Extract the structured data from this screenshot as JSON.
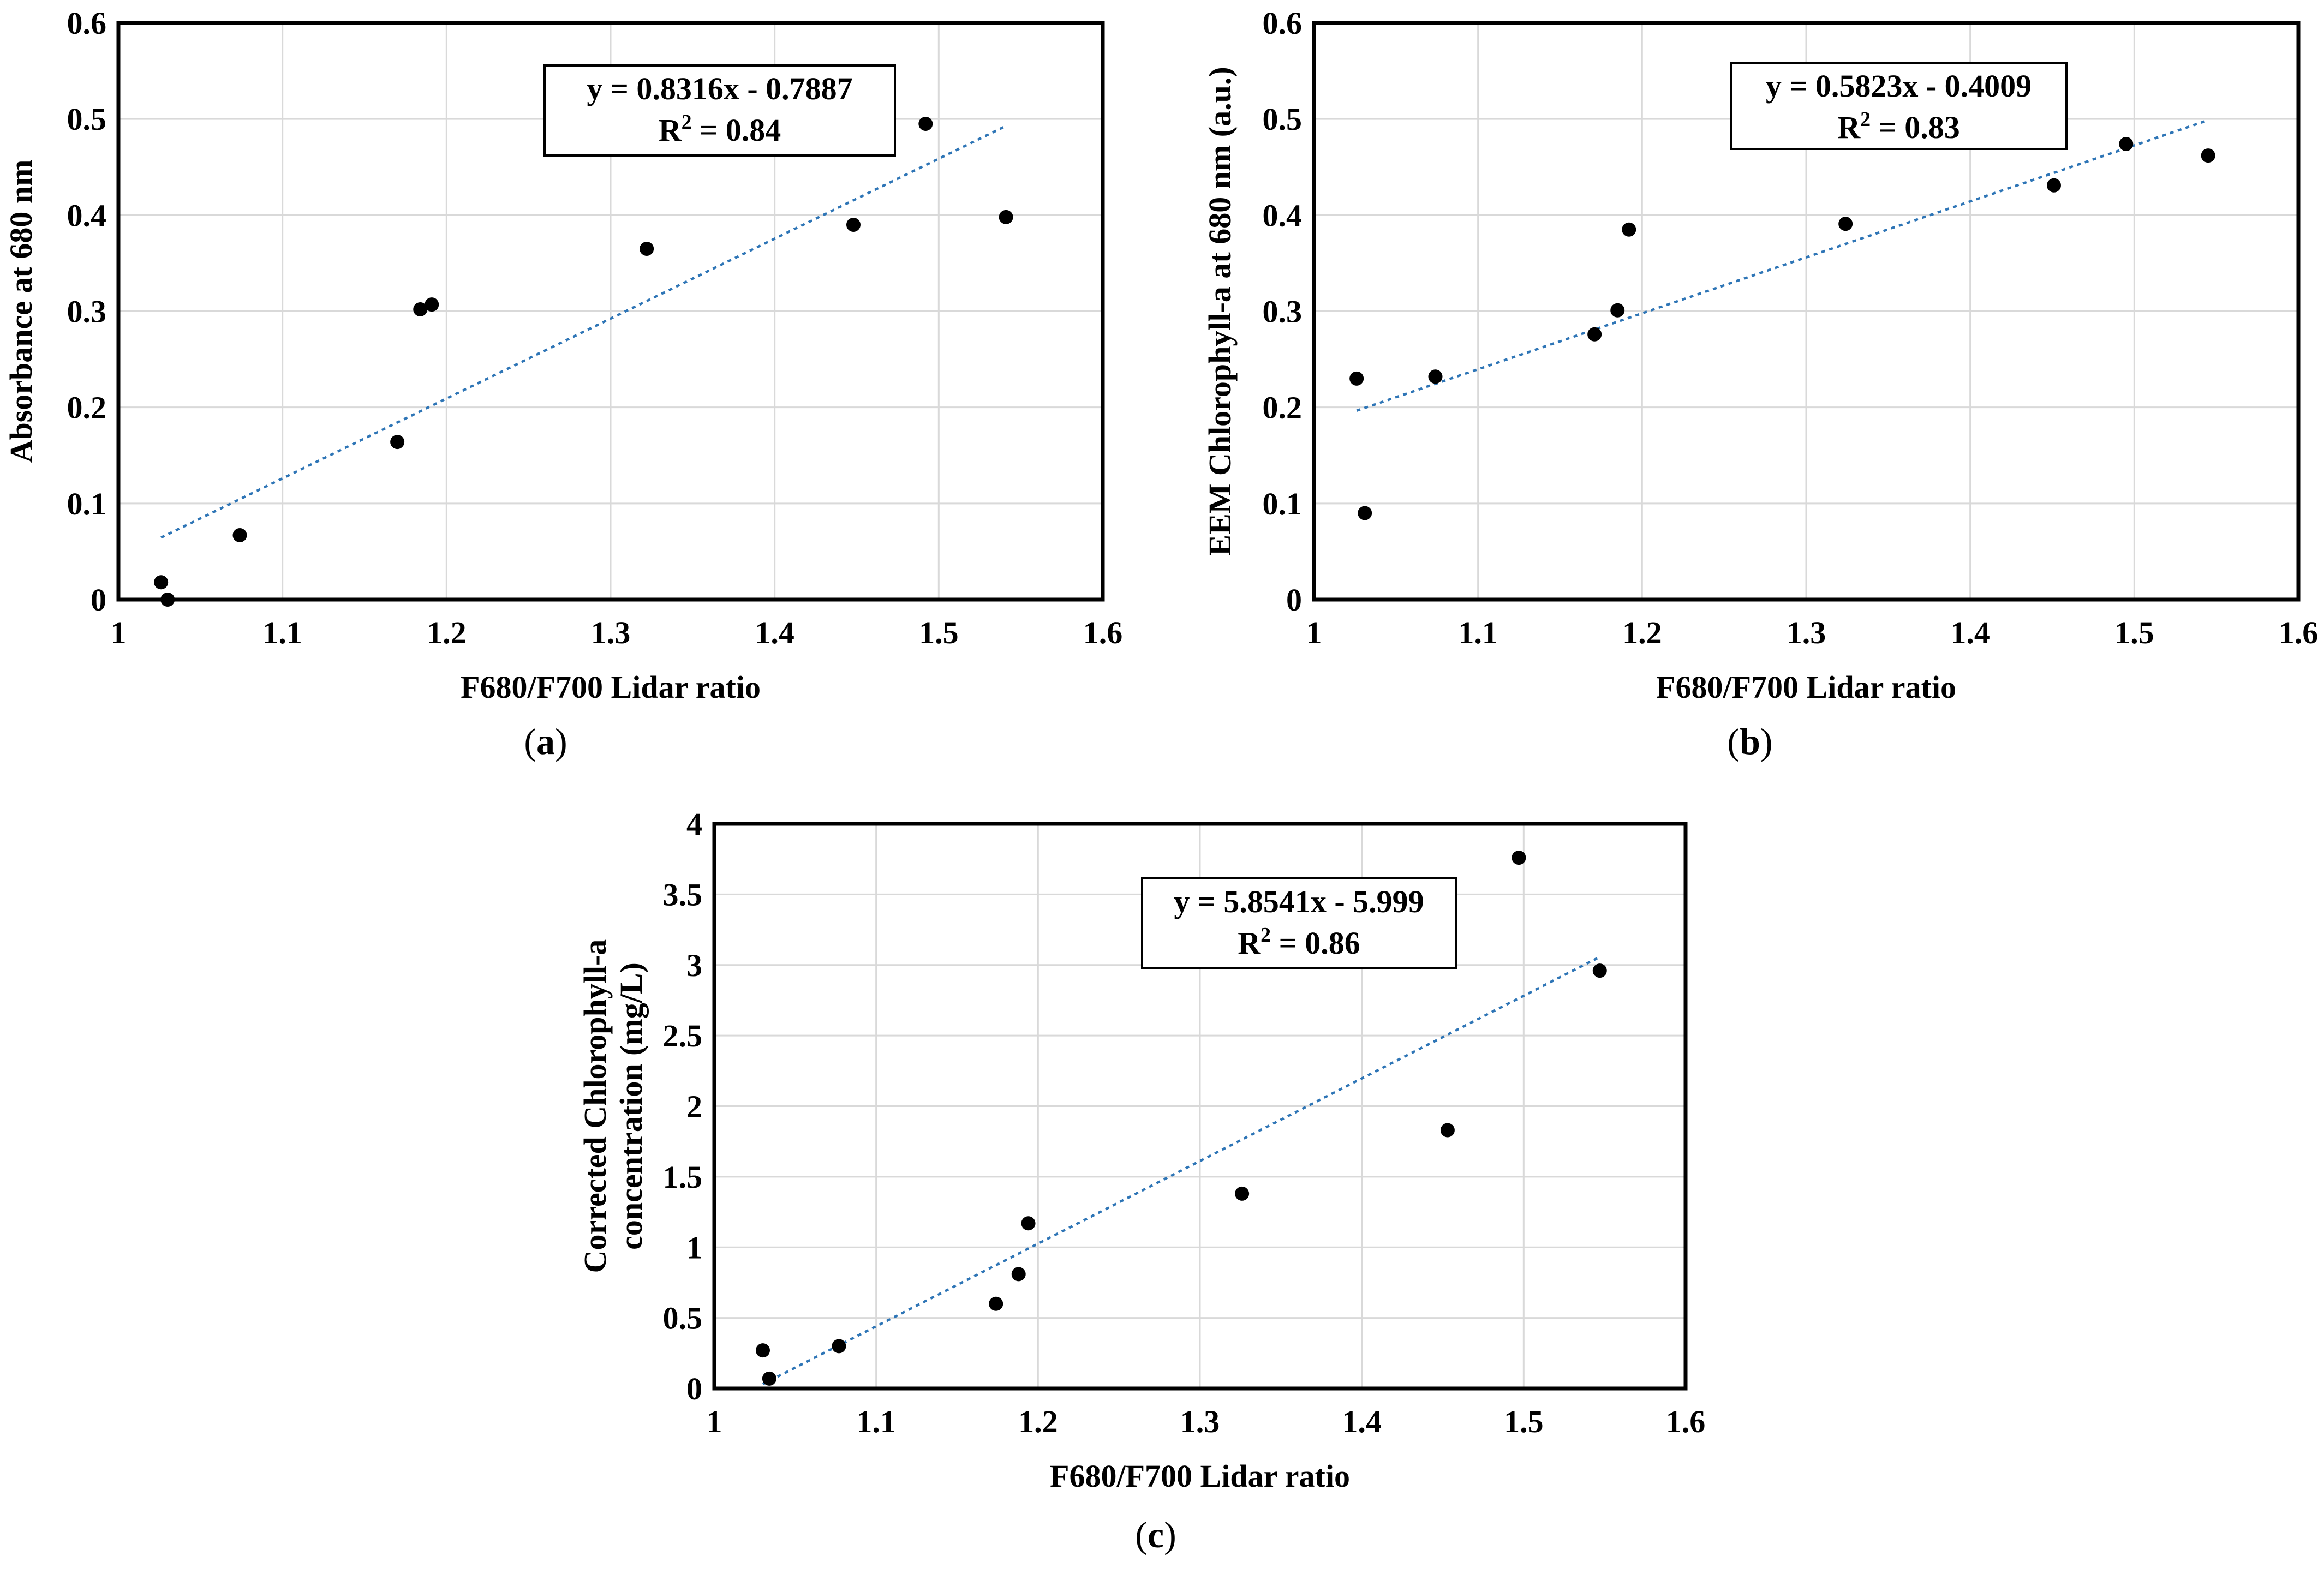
{
  "chart_data": [
    {
      "type": "scatter",
      "panel_label": "a",
      "xlabel": "F680/F700 Lidar ratio",
      "ylabel": "Absorbance at 680 nm",
      "xlim": [
        1,
        1.6
      ],
      "ylim": [
        0,
        0.6
      ],
      "x_ticks": [
        "1",
        "1.1",
        "1.2",
        "1.3",
        "1.4",
        "1.5",
        "1.6"
      ],
      "y_ticks": [
        "0",
        "0.1",
        "0.2",
        "0.3",
        "0.4",
        "0.5",
        "0.6"
      ],
      "grid": true,
      "points": [
        {
          "x": 1.026,
          "y": 0.018
        },
        {
          "x": 1.03,
          "y": 0.0
        },
        {
          "x": 1.074,
          "y": 0.067
        },
        {
          "x": 1.17,
          "y": 0.164
        },
        {
          "x": 1.184,
          "y": 0.302
        },
        {
          "x": 1.191,
          "y": 0.307
        },
        {
          "x": 1.322,
          "y": 0.365
        },
        {
          "x": 1.448,
          "y": 0.39
        },
        {
          "x": 1.492,
          "y": 0.495
        },
        {
          "x": 1.541,
          "y": 0.398
        }
      ],
      "trendline": {
        "slope": 0.8316,
        "intercept": -0.7887,
        "x_range": [
          1.026,
          1.541
        ]
      },
      "equation": "y = 0.8316x - 0.7887",
      "r2_prefix": "R",
      "r2_exp": "2",
      "r2_value": " = 0.84"
    },
    {
      "type": "scatter",
      "panel_label": "b",
      "xlabel": "F680/F700 Lidar ratio",
      "ylabel": "EEM Chlorophyll-a at 680 nm (a.u.)",
      "xlim": [
        1,
        1.6
      ],
      "ylim": [
        0,
        0.6
      ],
      "x_ticks": [
        "1",
        "1.1",
        "1.2",
        "1.3",
        "1.4",
        "1.5",
        "1.6"
      ],
      "y_ticks": [
        "0",
        "0.1",
        "0.2",
        "0.3",
        "0.4",
        "0.5",
        "0.6"
      ],
      "grid": true,
      "points": [
        {
          "x": 1.026,
          "y": 0.23
        },
        {
          "x": 1.031,
          "y": 0.09
        },
        {
          "x": 1.074,
          "y": 0.232
        },
        {
          "x": 1.171,
          "y": 0.276
        },
        {
          "x": 1.185,
          "y": 0.301
        },
        {
          "x": 1.192,
          "y": 0.385
        },
        {
          "x": 1.324,
          "y": 0.391
        },
        {
          "x": 1.451,
          "y": 0.431
        },
        {
          "x": 1.495,
          "y": 0.474
        },
        {
          "x": 1.545,
          "y": 0.462
        }
      ],
      "trendline": {
        "slope": 0.5823,
        "intercept": -0.4009,
        "x_range": [
          1.026,
          1.545
        ]
      },
      "equation": "y = 0.5823x - 0.4009",
      "r2_prefix": "R",
      "r2_exp": "2",
      "r2_value": " = 0.83"
    },
    {
      "type": "scatter",
      "panel_label": "c",
      "xlabel": "F680/F700 Lidar ratio",
      "ylabel_lines": [
        "Corrected Chlorophyll-a",
        "concentration (mg/L)"
      ],
      "xlim": [
        1,
        1.6
      ],
      "ylim": [
        0,
        4
      ],
      "x_ticks": [
        "1",
        "1.1",
        "1.2",
        "1.3",
        "1.4",
        "1.5",
        "1.6"
      ],
      "y_ticks": [
        "0",
        "0.5",
        "1",
        "1.5",
        "2",
        "2.5",
        "3",
        "3.5",
        "4"
      ],
      "grid": true,
      "points": [
        {
          "x": 1.03,
          "y": 0.27
        },
        {
          "x": 1.034,
          "y": 0.07
        },
        {
          "x": 1.077,
          "y": 0.3
        },
        {
          "x": 1.174,
          "y": 0.6
        },
        {
          "x": 1.188,
          "y": 0.81
        },
        {
          "x": 1.194,
          "y": 1.17
        },
        {
          "x": 1.326,
          "y": 1.38
        },
        {
          "x": 1.453,
          "y": 1.83
        },
        {
          "x": 1.497,
          "y": 3.76
        },
        {
          "x": 1.547,
          "y": 2.96
        }
      ],
      "trendline": {
        "slope": 5.8541,
        "intercept": -5.999,
        "x_range": [
          1.03,
          1.547
        ]
      },
      "equation": "y = 5.8541x - 5.999",
      "r2_prefix": "R",
      "r2_exp": "2",
      "r2_value": " = 0.86"
    }
  ]
}
